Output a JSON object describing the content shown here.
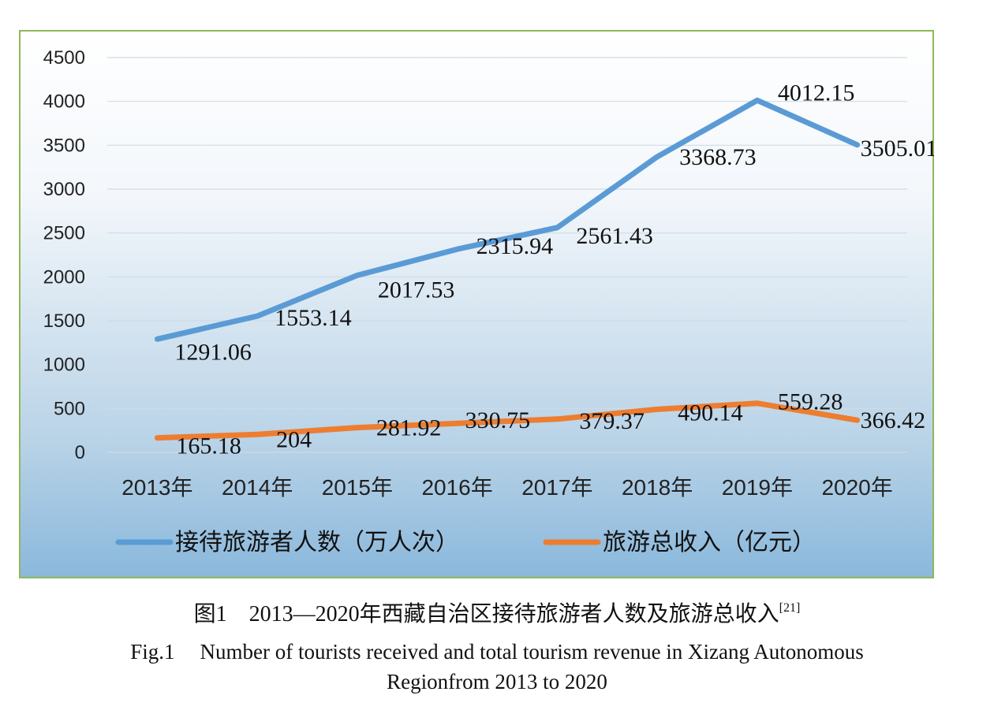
{
  "chart_data": {
    "type": "line",
    "categories": [
      "2013年",
      "2014年",
      "2015年",
      "2016年",
      "2017年",
      "2018年",
      "2019年",
      "2020年"
    ],
    "ylim": [
      0,
      4500
    ],
    "yticks": [
      "0",
      "500",
      "1000",
      "1500",
      "2000",
      "2500",
      "3000",
      "3500",
      "4000",
      "4500"
    ],
    "grid": true,
    "legend_position": "bottom",
    "series": [
      {
        "name": "接待旅游者人数（万人次）",
        "color": "#5b9bd5",
        "values": [
          1291.06,
          1553.14,
          2017.53,
          2315.94,
          2561.43,
          3368.73,
          4012.15,
          3505.01
        ],
        "labels": [
          "1291.06",
          "1553.14",
          "2017.53",
          "2315.94",
          "2561.43",
          "3368.73",
          "4012.15",
          "3505.01"
        ]
      },
      {
        "name": "旅游总收入（亿元）",
        "color": "#ed7d31",
        "values": [
          165.18,
          204,
          281.92,
          330.75,
          379.37,
          490.14,
          559.28,
          366.42
        ],
        "labels": [
          "165.18",
          "204",
          "281.92",
          "330.75",
          "379.37",
          "490.14",
          "559.28",
          "366.42"
        ]
      }
    ]
  },
  "caption": {
    "cn_title": "图1　2013—2020年西藏自治区接待旅游者人数及旅游总收入",
    "cn_ref": "[21]",
    "en_fig": "Fig.1",
    "en_title": "Number of tourists received and total tourism revenue in Xizang Autonomous",
    "en_title_line2": "Regionfrom 2013 to 2020"
  }
}
